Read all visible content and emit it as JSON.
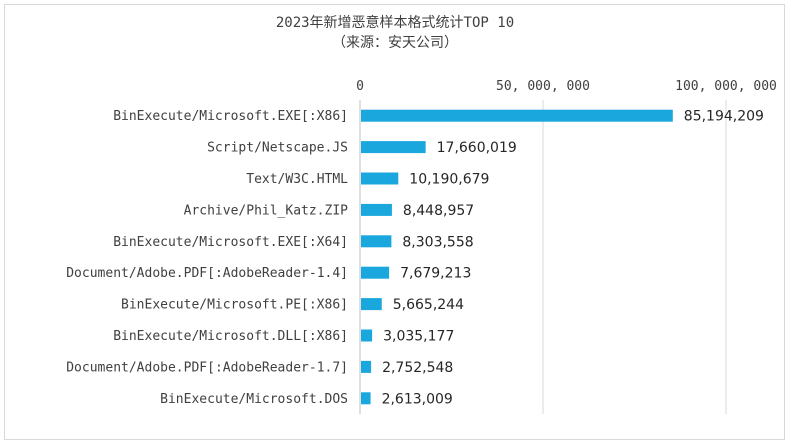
{
  "chart_data": {
    "type": "bar",
    "orientation": "horizontal",
    "title": "2023年新增恶意样本格式统计TOP 10",
    "subtitle": "（来源：安天公司）",
    "categories": [
      "BinExecute/Microsoft.EXE[:X86]",
      "Script/Netscape.JS",
      "Text/W3C.HTML",
      "Archive/Phil_Katz.ZIP",
      "BinExecute/Microsoft.EXE[:X64]",
      "Document/Adobe.PDF[:AdobeReader-1.4]",
      "BinExecute/Microsoft.PE[:X86]",
      "BinExecute/Microsoft.DLL[:X86]",
      "Document/Adobe.PDF[:AdobeReader-1.7]",
      "BinExecute/Microsoft.DOS"
    ],
    "values": [
      85194209,
      17660019,
      10190679,
      8448957,
      8303558,
      7679213,
      5665244,
      3035177,
      2752548,
      2613009
    ],
    "data_labels": [
      "85,194,209",
      "17,660,019",
      "10,190,679",
      "8,448,957",
      "8,303,558",
      "7,679,213",
      "5,665,244",
      "3,035,177",
      "2,752,548",
      "2,613,009"
    ],
    "x_ticks": [
      0,
      50000000,
      100000000
    ],
    "x_tick_labels": [
      "0",
      "50, 000, 000",
      "100, 000, 000"
    ],
    "xlim": [
      0,
      100000000
    ],
    "axis_position": "top",
    "gridlines": true,
    "bar_color": "#1aa7de",
    "grid_color": "#d9d9d9",
    "legend": "none"
  }
}
